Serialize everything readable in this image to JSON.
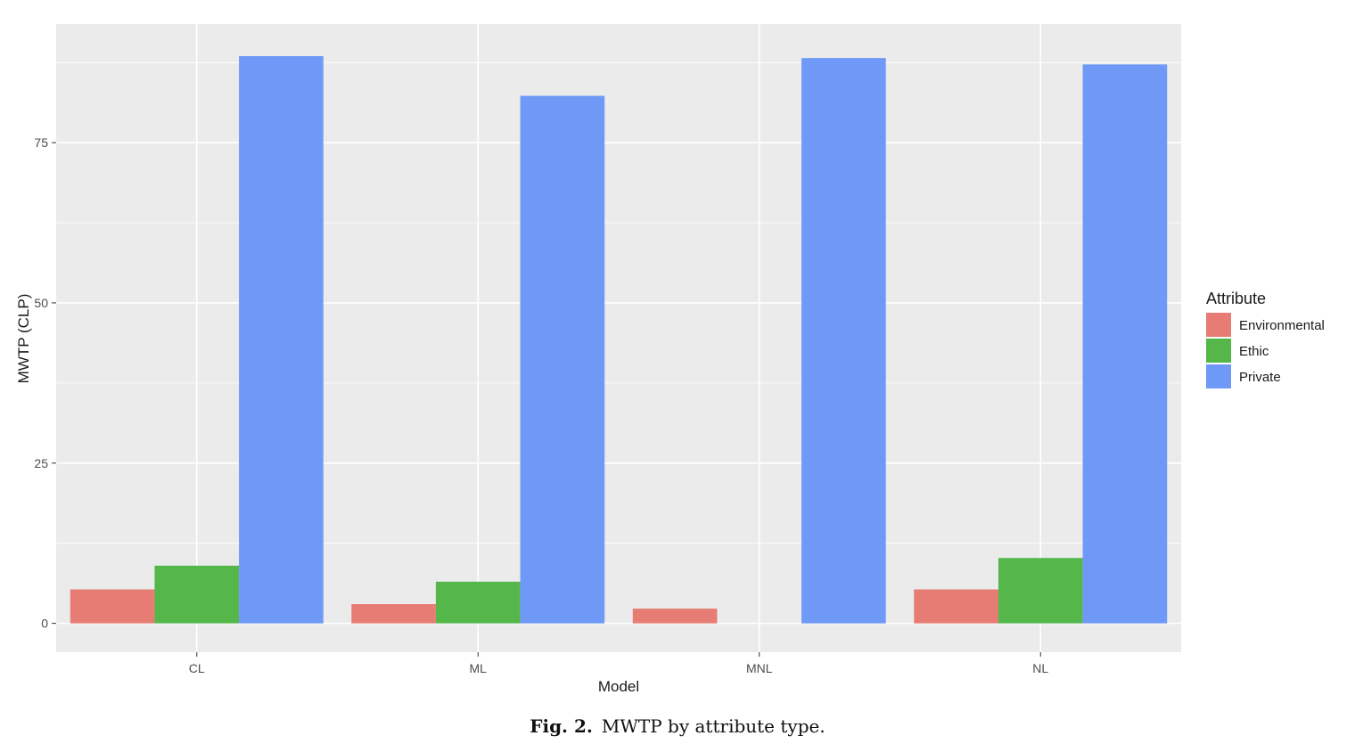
{
  "chart_data": {
    "type": "bar",
    "title": "",
    "xlabel": "Model",
    "ylabel": "MWTP (CLP)",
    "categories": [
      "CL",
      "ML",
      "MNL",
      "NL"
    ],
    "series": [
      {
        "name": "Environmental",
        "color": "#E67C73",
        "values": [
          5.3,
          3.0,
          2.3,
          5.3
        ]
      },
      {
        "name": "Ethic",
        "color": "#55B74A",
        "values": [
          9.0,
          6.5,
          0,
          10.2
        ]
      },
      {
        "name": "Private",
        "color": "#6F99F6",
        "values": [
          88.5,
          82.3,
          88.2,
          87.2
        ]
      }
    ],
    "ylim": [
      -4.5,
      93.5
    ],
    "yticks": [
      0,
      25,
      50,
      75
    ],
    "ytick_labels": [
      "0",
      "25",
      "50",
      "75"
    ],
    "grid": true,
    "legend_title": "Attribute",
    "legend_position": "right"
  },
  "caption": {
    "label": "Fig. 2.",
    "text": "MWTP by attribute type."
  }
}
